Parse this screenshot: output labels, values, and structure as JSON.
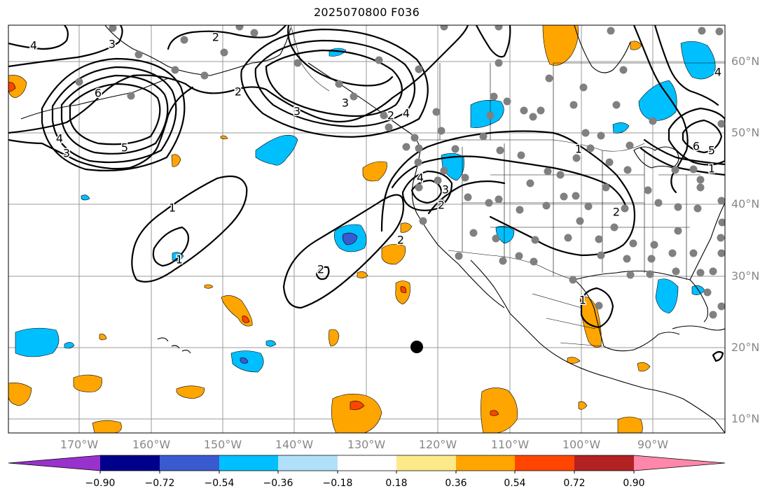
{
  "title": "2025070800 F036",
  "map": {
    "lat_labels": [
      "60°N",
      "50°N",
      "40°N",
      "30°N",
      "20°N",
      "10°N"
    ],
    "lon_labels": [
      "170°W",
      "160°W",
      "150°W",
      "140°W",
      "130°W",
      "120°W",
      "110°W",
      "100°W",
      "90°W"
    ],
    "contour_labels": [
      "4",
      "3",
      "2",
      "2",
      "6",
      "4",
      "3",
      "5",
      "3",
      "2",
      "3",
      "4",
      "1",
      "1",
      "2",
      "2",
      "1",
      "4",
      "3",
      "2",
      "2",
      "1",
      "6",
      "5",
      "1",
      "4"
    ],
    "markers": {
      "station_dot_color": "#808080",
      "center_dot_color": "#000000"
    }
  },
  "colorbar": {
    "ticks": [
      "−0.90",
      "−0.72",
      "−0.54",
      "−0.36",
      "−0.18",
      "0.18",
      "0.36",
      "0.54",
      "0.72",
      "0.90"
    ],
    "colors": [
      "#9932cc",
      "#00008b",
      "#3a5bd0",
      "#00bfff",
      "#b0e0fa",
      "#ffffff",
      "#fce98a",
      "#ffa500",
      "#ff4500",
      "#b22222",
      "#ff88aa"
    ]
  }
}
